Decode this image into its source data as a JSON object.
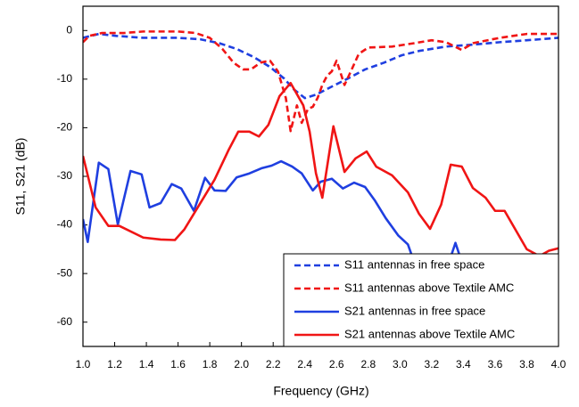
{
  "chart_data": {
    "type": "line",
    "xlabel": "Frequency (GHz)",
    "ylabel": "S11, S21 (dB)",
    "xlim": [
      1.0,
      4.0
    ],
    "ylim": [
      -65,
      5
    ],
    "xticks": [
      {
        "value": 1.0,
        "label": "1.0"
      },
      1.2,
      1.4,
      1.6,
      1.8,
      {
        "value": 2.0,
        "label": "2.0"
      },
      2.2,
      2.4,
      2.6,
      2.8,
      {
        "value": 3.0,
        "label": "3.0"
      },
      3.2,
      3.4,
      3.6,
      3.8,
      {
        "value": 4.0,
        "label": "4.0"
      }
    ],
    "yticks": [
      0,
      -10,
      -20,
      -30,
      -40,
      -50,
      -60
    ],
    "legend": "lower right",
    "series": [
      {
        "name": "S11 antennas in free space",
        "color": "#1f3fe0",
        "style": "dashed",
        "x": [
          1.0,
          1.1,
          1.21,
          1.38,
          1.6,
          1.74,
          1.86,
          1.97,
          2.08,
          2.18,
          2.27,
          2.33,
          2.4,
          2.47,
          2.56,
          2.67,
          2.78,
          2.9,
          3.01,
          3.12,
          3.29,
          3.46,
          3.63,
          3.8,
          4.0
        ],
        "values": [
          -1.5,
          -0.7,
          -1.1,
          -1.5,
          -1.5,
          -1.8,
          -2.6,
          -3.8,
          -5.5,
          -7.5,
          -9.9,
          -12.1,
          -13.9,
          -13.2,
          -11.7,
          -9.9,
          -8,
          -6.6,
          -5.1,
          -4.2,
          -3.3,
          -2.9,
          -2.4,
          -2,
          -1.5
        ]
      },
      {
        "name": "S11 antennas above Textile AMC",
        "color": "#f01515",
        "style": "dashed",
        "x": [
          1.0,
          1.04,
          1.12,
          1.26,
          1.38,
          1.6,
          1.71,
          1.8,
          1.88,
          1.95,
          2.01,
          2.06,
          2.12,
          2.18,
          2.23,
          2.28,
          2.31,
          2.35,
          2.38,
          2.42,
          2.45,
          2.48,
          2.51,
          2.54,
          2.57,
          2.6,
          2.65,
          2.69,
          2.74,
          2.8,
          2.95,
          3.09,
          3.2,
          3.29,
          3.39,
          3.46,
          3.63,
          3.8,
          4.0
        ],
        "values": [
          -2.4,
          -1.1,
          -0.5,
          -0.5,
          -0.2,
          -0.2,
          -0.5,
          -1.5,
          -3.8,
          -6.6,
          -8,
          -8,
          -6.6,
          -6.2,
          -8.4,
          -13.9,
          -20.7,
          -15.4,
          -19,
          -16.1,
          -15.7,
          -13.9,
          -11.2,
          -9.3,
          -8.4,
          -6.2,
          -11.2,
          -8.4,
          -4.8,
          -3.5,
          -3.3,
          -2.6,
          -2,
          -2.4,
          -4,
          -2.6,
          -1.5,
          -0.7,
          -0.7
        ]
      },
      {
        "name": "S21 antennas in free space",
        "color": "#1f3fe0",
        "style": "solid",
        "x": [
          1.0,
          1.03,
          1.1,
          1.16,
          1.22,
          1.3,
          1.37,
          1.42,
          1.49,
          1.56,
          1.62,
          1.7,
          1.77,
          1.83,
          1.9,
          1.97,
          2.05,
          2.13,
          2.19,
          2.25,
          2.32,
          2.38,
          2.45,
          2.5,
          2.57,
          2.64,
          2.71,
          2.78,
          2.84,
          2.91,
          2.99,
          3.05,
          3.1,
          3.13,
          3.18,
          3.29,
          3.35,
          3.4,
          3.51,
          3.73,
          4.0
        ],
        "values": [
          -38.8,
          -43.5,
          -27.2,
          -28.5,
          -39.9,
          -28.9,
          -29.6,
          -36.4,
          -35.5,
          -31.6,
          -32.5,
          -37.1,
          -30.3,
          -32.9,
          -33,
          -30.2,
          -29.4,
          -28.3,
          -27.8,
          -26.9,
          -28,
          -29.4,
          -32.9,
          -31.1,
          -30.5,
          -32.5,
          -31.3,
          -32.2,
          -34.9,
          -38.6,
          -42.2,
          -44,
          -48.6,
          -52.3,
          -54,
          -49.5,
          -43.7,
          -48.6,
          -50.5,
          -51.4,
          -52.3
        ]
      },
      {
        "name": "S21 antennas above Textile AMC",
        "color": "#f01515",
        "style": "solid",
        "x": [
          1.0,
          1.08,
          1.16,
          1.23,
          1.38,
          1.49,
          1.58,
          1.64,
          1.72,
          1.83,
          1.92,
          1.98,
          2.05,
          2.11,
          2.17,
          2.24,
          2.31,
          2.39,
          2.43,
          2.47,
          2.51,
          2.58,
          2.65,
          2.72,
          2.79,
          2.85,
          2.95,
          3.05,
          3.12,
          3.19,
          3.26,
          3.32,
          3.39,
          3.46,
          3.54,
          3.6,
          3.66,
          3.8,
          3.88,
          3.94,
          4.0
        ],
        "values": [
          -25.8,
          -36.4,
          -40.2,
          -40.2,
          -42.6,
          -43,
          -43.1,
          -40.9,
          -36.6,
          -30.7,
          -24.5,
          -20.8,
          -20.8,
          -21.8,
          -19.4,
          -13.5,
          -10.8,
          -15.4,
          -20.8,
          -29.4,
          -34.4,
          -19.7,
          -29.1,
          -26.3,
          -24.9,
          -28,
          -29.8,
          -33.3,
          -37.7,
          -40.8,
          -35.8,
          -27.6,
          -28,
          -32.4,
          -34.4,
          -37.1,
          -37.1,
          -45,
          -46.4,
          -45.3,
          -44.8
        ]
      }
    ]
  }
}
